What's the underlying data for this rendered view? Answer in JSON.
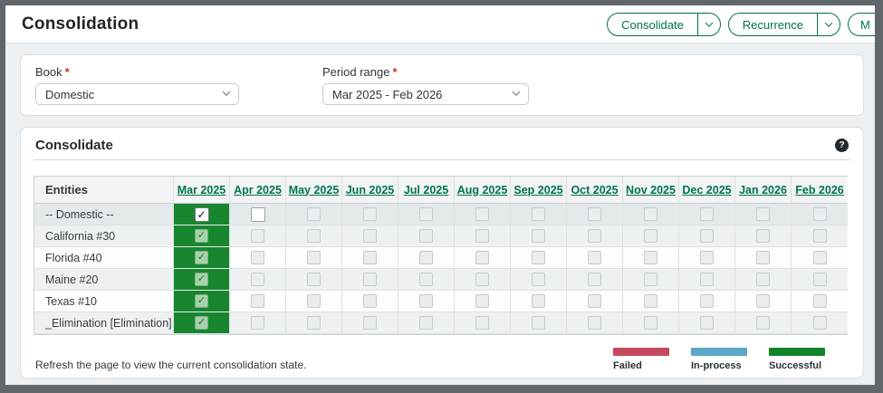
{
  "header": {
    "title": "Consolidation",
    "buttons": [
      {
        "label": "Consolidate"
      },
      {
        "label": "Recurrence"
      },
      {
        "label": "M"
      }
    ]
  },
  "filters": {
    "required_marker": "*",
    "book": {
      "label": "Book",
      "value": "Domestic"
    },
    "period_range": {
      "label": "Period range",
      "value": "Mar 2025 - Feb 2026"
    }
  },
  "section": {
    "title": "Consolidate",
    "help_glyph": "?"
  },
  "table": {
    "entities_header": "Entities",
    "months": [
      "Mar 2025",
      "Apr 2025",
      "May 2025",
      "Jun 2025",
      "Jul 2025",
      "Aug 2025",
      "Sep 2025",
      "Oct 2025",
      "Nov 2025",
      "Dec 2025",
      "Jan 2026",
      "Feb 2026"
    ],
    "rows": [
      {
        "entity": "-- Domestic --",
        "cells": [
          "on",
          "off",
          "doff",
          "doff",
          "doff",
          "doff",
          "doff",
          "doff",
          "doff",
          "doff",
          "doff",
          "doff"
        ]
      },
      {
        "entity": "California #30",
        "cells": [
          "don",
          "doff",
          "doff",
          "doff",
          "doff",
          "doff",
          "doff",
          "doff",
          "doff",
          "doff",
          "doff",
          "doff"
        ]
      },
      {
        "entity": "Florida #40",
        "cells": [
          "don",
          "doff",
          "doff",
          "doff",
          "doff",
          "doff",
          "doff",
          "doff",
          "doff",
          "doff",
          "doff",
          "doff"
        ]
      },
      {
        "entity": "Maine #20",
        "cells": [
          "don",
          "doff",
          "doff",
          "doff",
          "doff",
          "doff",
          "doff",
          "doff",
          "doff",
          "doff",
          "doff",
          "doff"
        ]
      },
      {
        "entity": "Texas #10",
        "cells": [
          "don",
          "doff",
          "doff",
          "doff",
          "doff",
          "doff",
          "doff",
          "doff",
          "doff",
          "doff",
          "doff",
          "doff"
        ]
      },
      {
        "entity": "_Elimination [Elimination]",
        "cells": [
          "don",
          "doff",
          "doff",
          "doff",
          "doff",
          "doff",
          "doff",
          "doff",
          "doff",
          "doff",
          "doff",
          "doff"
        ]
      }
    ]
  },
  "footer": {
    "note": "Refresh the page to view the current consolidation state.",
    "legend": [
      {
        "label": "Failed",
        "color": "#c4495c"
      },
      {
        "label": "In-process",
        "color": "#5aa7c6"
      },
      {
        "label": "Successful",
        "color": "#0f8527"
      }
    ]
  },
  "colors": {
    "accent_green": "#00754a",
    "cell_green": "#17862e"
  }
}
